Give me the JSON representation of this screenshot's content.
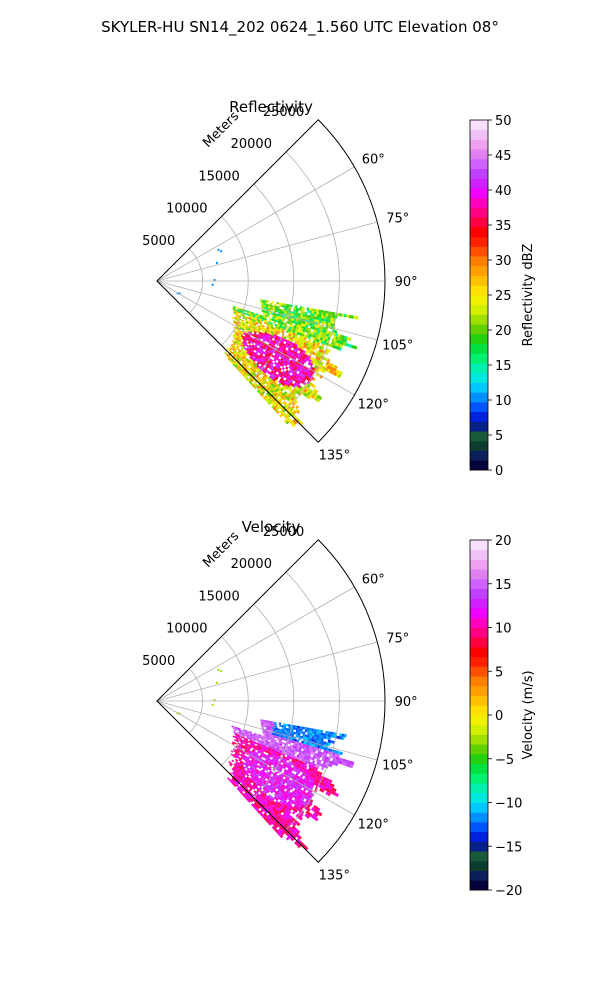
{
  "figure": {
    "title": "SKYLER-HU  SN14_202  0624_1.560 UTC Elevation 08°"
  },
  "chart_data": [
    {
      "type": "heatmap",
      "projection": "polar-sector",
      "title": "Reflectivity",
      "radius_label": "Meters",
      "radius_max": 25000,
      "r_ticks": [
        5000,
        10000,
        15000,
        20000,
        25000
      ],
      "r_tick_labels": [
        "5000",
        "10000",
        "15000",
        "20000",
        "25000"
      ],
      "theta_range_deg": [
        45,
        135
      ],
      "theta_ticks": [
        60,
        75,
        90,
        105,
        120,
        135
      ],
      "theta_tick_labels": [
        "60°",
        "75°",
        "90°",
        "105°",
        "120°",
        "135°"
      ],
      "grid": true,
      "colorbar": {
        "label": "Reflectivity dBZ",
        "vmin": 0,
        "vmax": 50,
        "ticks": [
          0,
          5,
          10,
          15,
          20,
          25,
          30,
          35,
          40,
          45,
          50
        ],
        "tick_labels": [
          "0",
          "5",
          "10",
          "15",
          "20",
          "25",
          "30",
          "35",
          "40",
          "45",
          "50"
        ],
        "colors": [
          "#04033a",
          "#0a1f5c",
          "#0c3d2e",
          "#185a3a",
          "#08208a",
          "#0022dd",
          "#0055ff",
          "#0090ff",
          "#00c8ff",
          "#00e8e0",
          "#00f0b0",
          "#00f070",
          "#00e040",
          "#22d010",
          "#60d000",
          "#a0e000",
          "#d0f000",
          "#f0f000",
          "#ffe000",
          "#ffc000",
          "#ffa000",
          "#ff8000",
          "#ff5000",
          "#ff2000",
          "#ff0000",
          "#ff0040",
          "#ff0080",
          "#ff00c0",
          "#f000ff",
          "#d020ff",
          "#c040ff",
          "#d060ff",
          "#e080f0",
          "#f0a0f0",
          "#f0c0f8",
          "#f8e0fc"
        ]
      },
      "precipitation_region": {
        "theta_deg": [
          100,
          137
        ],
        "r_m": [
          8000,
          23500
        ],
        "typical_value": 24,
        "core_value": 36,
        "max_value": 42
      }
    },
    {
      "type": "heatmap",
      "projection": "polar-sector",
      "title": "Velocity",
      "radius_label": "Meters",
      "radius_max": 25000,
      "r_ticks": [
        5000,
        10000,
        15000,
        20000,
        25000
      ],
      "r_tick_labels": [
        "5000",
        "10000",
        "15000",
        "20000",
        "25000"
      ],
      "theta_range_deg": [
        45,
        135
      ],
      "theta_ticks": [
        60,
        75,
        90,
        105,
        120,
        135
      ],
      "theta_tick_labels": [
        "60°",
        "75°",
        "90°",
        "105°",
        "120°",
        "135°"
      ],
      "grid": true,
      "colorbar": {
        "label": "Velocity (m/s)",
        "vmin": -20,
        "vmax": 20,
        "ticks": [
          -20,
          -15,
          -10,
          -5,
          0,
          5,
          10,
          15,
          20
        ],
        "tick_labels": [
          "−20",
          "−15",
          "−10",
          "−5",
          "0",
          "5",
          "10",
          "15",
          "20"
        ],
        "colors": [
          "#04033a",
          "#0a1f5c",
          "#0c3d2e",
          "#185a3a",
          "#08208a",
          "#0022dd",
          "#0055ff",
          "#0090ff",
          "#00c8ff",
          "#00e8e0",
          "#00f0b0",
          "#00f070",
          "#00e040",
          "#22d010",
          "#60d000",
          "#a0e000",
          "#d0f000",
          "#f0f000",
          "#ffe000",
          "#ffc000",
          "#ffa000",
          "#ff8000",
          "#ff5000",
          "#ff2000",
          "#ff0000",
          "#ff0040",
          "#ff0080",
          "#ff00c0",
          "#f000ff",
          "#d020ff",
          "#c040ff",
          "#d060ff",
          "#e080f0",
          "#f0a0f0",
          "#f0c0f8",
          "#f8e0fc"
        ]
      },
      "precipitation_region": {
        "theta_deg": [
          100,
          137
        ],
        "r_m": [
          8000,
          23500
        ],
        "typical_value": 10,
        "core_value": 12,
        "max_value": 16,
        "receding_patch_value": -12
      }
    }
  ]
}
